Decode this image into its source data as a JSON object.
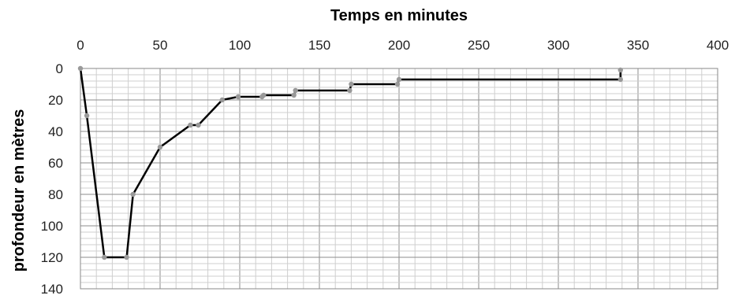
{
  "chart_data": {
    "type": "line",
    "title": "",
    "xlabel": "Temps en minutes",
    "ylabel": "profondeur  en mètres",
    "xlim": [
      0,
      400
    ],
    "ylim": [
      0,
      140
    ],
    "y_inverted": true,
    "x_axis_position": "top",
    "x_ticks": [
      0,
      50,
      100,
      150,
      200,
      250,
      300,
      350,
      400
    ],
    "y_ticks": [
      0,
      20,
      40,
      60,
      80,
      100,
      120,
      140
    ],
    "grid": true,
    "series": [
      {
        "color": "#000000",
        "marker_color": "#999999",
        "points": [
          [
            0,
            0
          ],
          [
            4,
            30
          ],
          [
            15,
            120
          ],
          [
            29,
            120
          ],
          [
            33,
            80
          ],
          [
            50,
            50
          ],
          [
            69,
            36
          ],
          [
            74,
            36
          ],
          [
            89,
            20
          ],
          [
            99,
            18
          ],
          [
            114,
            18
          ],
          [
            115,
            17
          ],
          [
            134,
            17
          ],
          [
            135,
            14
          ],
          [
            169,
            14
          ],
          [
            170,
            10
          ],
          [
            199,
            10
          ],
          [
            200,
            7
          ],
          [
            339,
            7
          ],
          [
            339,
            1
          ]
        ]
      }
    ]
  }
}
